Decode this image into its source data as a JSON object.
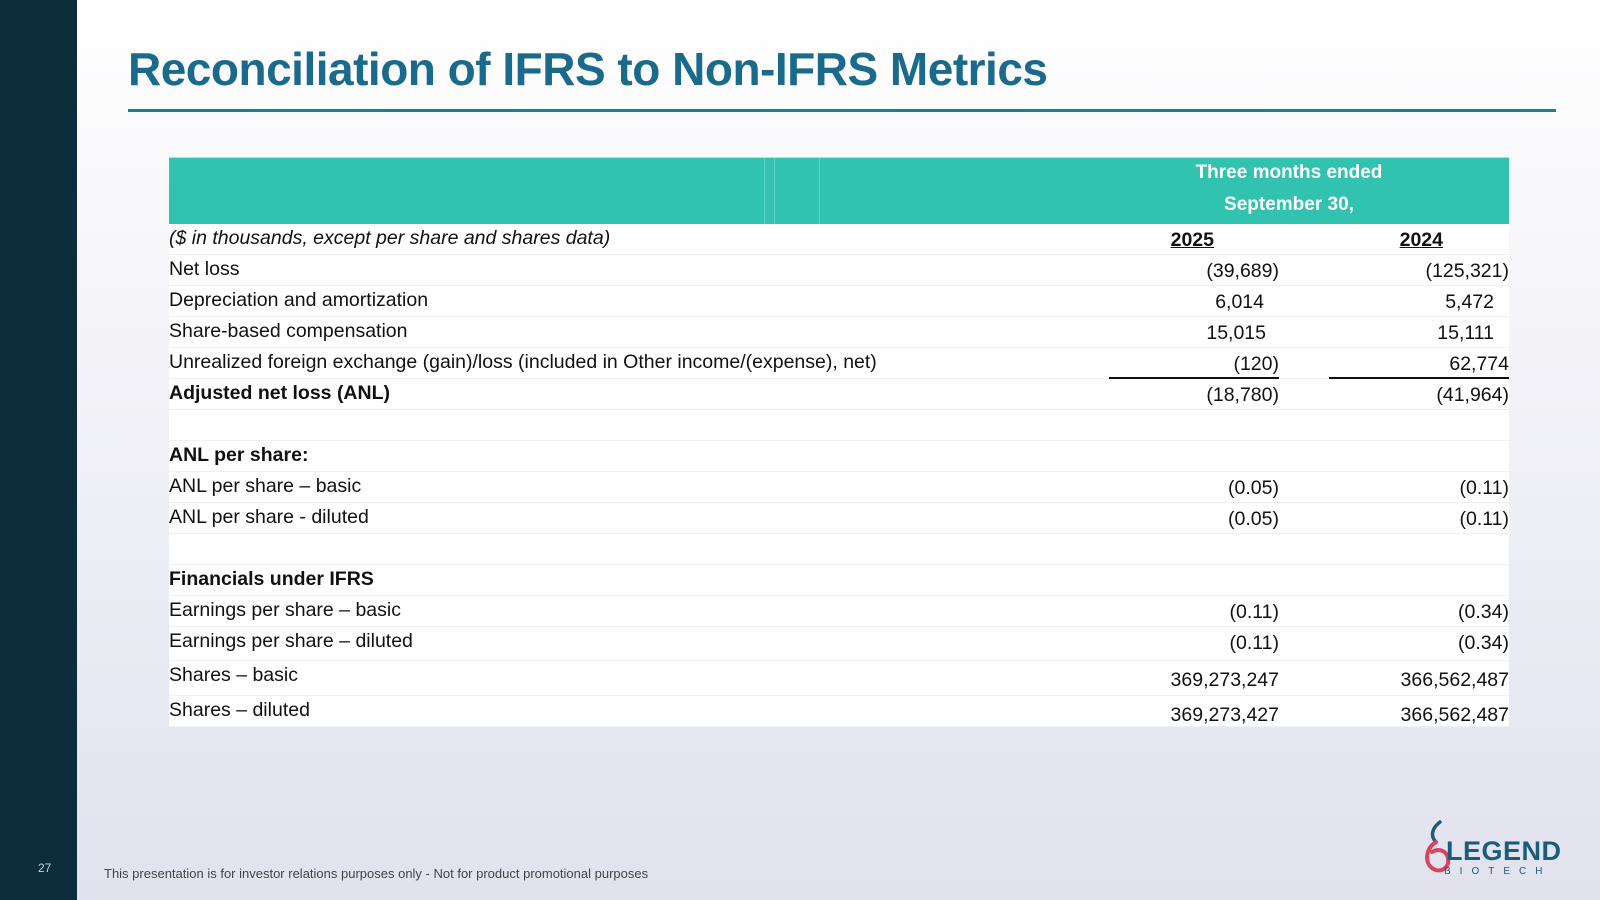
{
  "page_number": "27",
  "title": "Reconciliation of IFRS to Non-IFRS Metrics",
  "table": {
    "header_line1": "Three months ended",
    "header_line2": "September 30,",
    "units_note": "($ in thousands, except per share and shares data)",
    "year1": "2025",
    "year2": "2024",
    "rows": [
      {
        "label": "Net loss",
        "v1": "(39,689)",
        "v2": "(125,321)"
      },
      {
        "label": "Depreciation and amortization",
        "v1": "6,014",
        "v2": "5,472"
      },
      {
        "label": "Share-based compensation",
        "v1": "15,015",
        "v2": "15,111"
      },
      {
        "label": "Unrealized foreign exchange (gain)/loss (included in Other income/(expense), net)",
        "v1": "(120)",
        "v2": "62,774"
      },
      {
        "label": "Adjusted net loss (ANL)",
        "v1": "(18,780)",
        "v2": "(41,964)"
      },
      {
        "label": "ANL per share:"
      },
      {
        "label": "ANL per share – basic",
        "v1": "(0.05)",
        "v2": "(0.11)"
      },
      {
        "label": "ANL per share - diluted",
        "v1": "(0.05)",
        "v2": "(0.11)"
      },
      {
        "label": "Financials under IFRS"
      },
      {
        "label": "Earnings per share – basic",
        "v1": "(0.11)",
        "v2": "(0.34)"
      },
      {
        "label": "Earnings per share – diluted",
        "v1": "(0.11)",
        "v2": "(0.34)"
      },
      {
        "label": "Shares – basic",
        "v1": "369,273,247",
        "v2": "366,562,487"
      },
      {
        "label": "Shares – diluted",
        "v1": "369,273,427",
        "v2": "366,562,487"
      }
    ]
  },
  "footer": "This presentation is for investor relations purposes only - Not for product promotional purposes",
  "logo": {
    "name": "LEGEND",
    "sub": "BIOTECH"
  },
  "colors": {
    "title": "#1a6a8b",
    "header_band": "#31c3b0",
    "sidebar": "#0d2d3d"
  }
}
